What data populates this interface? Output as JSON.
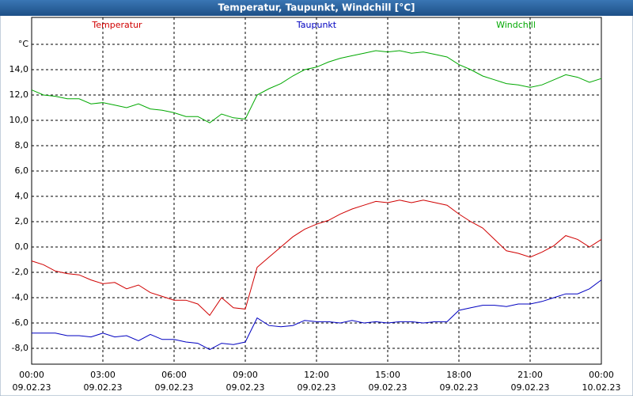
{
  "chart_data": {
    "type": "line",
    "title": "Temperatur, Taupunkt, Windchill [°C]",
    "x": [
      0,
      0.5,
      1,
      1.5,
      2,
      2.5,
      3,
      3.5,
      4,
      4.5,
      5,
      5.5,
      6,
      6.5,
      7,
      7.5,
      8,
      8.5,
      9,
      9.5,
      10,
      10.5,
      11,
      11.5,
      12,
      12.5,
      13,
      13.5,
      14,
      14.5,
      15,
      15.5,
      16,
      16.5,
      17,
      17.5,
      18,
      18.5,
      19,
      19.5,
      20,
      20.5,
      21,
      21.5,
      22,
      22.5,
      23,
      23.5,
      24
    ],
    "series": [
      {
        "name": "Temperatur",
        "color": "#d00000",
        "values": [
          -1.1,
          -1.4,
          -1.9,
          -2.1,
          -2.2,
          -2.6,
          -2.9,
          -2.8,
          -3.3,
          -3.0,
          -3.6,
          -3.9,
          -4.2,
          -4.2,
          -4.5,
          -5.4,
          -4.0,
          -4.8,
          -4.9,
          -1.6,
          -0.8,
          0.0,
          0.8,
          1.4,
          1.8,
          2.1,
          2.6,
          3.0,
          3.3,
          3.6,
          3.5,
          3.7,
          3.5,
          3.7,
          3.5,
          3.3,
          2.6,
          2.0,
          1.5,
          0.6,
          -0.3,
          -0.5,
          -0.8,
          -0.4,
          0.1,
          0.9,
          0.6,
          0.0,
          0.6
        ]
      },
      {
        "name": "Taupunkt",
        "color": "#0000c0",
        "values": [
          -6.8,
          -6.8,
          -6.8,
          -7.0,
          -7.0,
          -7.1,
          -6.8,
          -7.1,
          -7.0,
          -7.4,
          -6.9,
          -7.3,
          -7.3,
          -7.5,
          -7.6,
          -8.1,
          -7.6,
          -7.7,
          -7.5,
          -5.6,
          -6.2,
          -6.3,
          -6.2,
          -5.8,
          -5.9,
          -5.9,
          -6.0,
          -5.8,
          -6.0,
          -5.9,
          -6.0,
          -5.9,
          -5.9,
          -6.0,
          -5.9,
          -5.9,
          -5.0,
          -4.8,
          -4.6,
          -4.6,
          -4.7,
          -4.5,
          -4.5,
          -4.3,
          -4.0,
          -3.7,
          -3.7,
          -3.3,
          -2.6
        ]
      },
      {
        "name": "Windchill",
        "color": "#00a800",
        "values": [
          12.4,
          12.0,
          11.9,
          11.7,
          11.7,
          11.3,
          11.4,
          11.2,
          11.0,
          11.3,
          10.9,
          10.8,
          10.6,
          10.3,
          10.3,
          9.8,
          10.5,
          10.2,
          10.1,
          12.0,
          12.5,
          12.9,
          13.5,
          14.0,
          14.2,
          14.6,
          14.9,
          15.1,
          15.3,
          15.5,
          15.4,
          15.5,
          15.3,
          15.4,
          15.2,
          15.0,
          14.4,
          14.0,
          13.5,
          13.2,
          12.9,
          12.8,
          12.6,
          12.8,
          13.2,
          13.6,
          13.4,
          13.0,
          13.3
        ]
      }
    ],
    "xlim": [
      0,
      24
    ],
    "xticks": [
      {
        "value": 0,
        "label": "00:00",
        "date": "09.02.23"
      },
      {
        "value": 3,
        "label": "03:00",
        "date": "09.02.23"
      },
      {
        "value": 6,
        "label": "06:00",
        "date": "09.02.23"
      },
      {
        "value": 9,
        "label": "09:00",
        "date": "09.02.23"
      },
      {
        "value": 12,
        "label": "12:00",
        "date": "09.02.23"
      },
      {
        "value": 15,
        "label": "15:00",
        "date": "09.02.23"
      },
      {
        "value": 18,
        "label": "18:00",
        "date": "09.02.23"
      },
      {
        "value": 21,
        "label": "21:00",
        "date": "09.02.23"
      },
      {
        "value": 24,
        "label": "00:00",
        "date": "10.02.23"
      }
    ],
    "ylim": [
      -9.25,
      18.125
    ],
    "yticks": [
      {
        "value": -8,
        "label": "-8,0"
      },
      {
        "value": -6,
        "label": "-6,0"
      },
      {
        "value": -4,
        "label": "-4,0"
      },
      {
        "value": -2,
        "label": "-2,0"
      },
      {
        "value": 0,
        "label": "0,0"
      },
      {
        "value": 2,
        "label": "2,0"
      },
      {
        "value": 4,
        "label": "4,0"
      },
      {
        "value": 6,
        "label": "6,0"
      },
      {
        "value": 8,
        "label": "8,0"
      },
      {
        "value": 10,
        "label": "10,0"
      },
      {
        "value": 12,
        "label": "12,0"
      },
      {
        "value": 14,
        "label": "14,0"
      },
      {
        "value": 16,
        "label": "°C"
      }
    ],
    "grid": true
  }
}
